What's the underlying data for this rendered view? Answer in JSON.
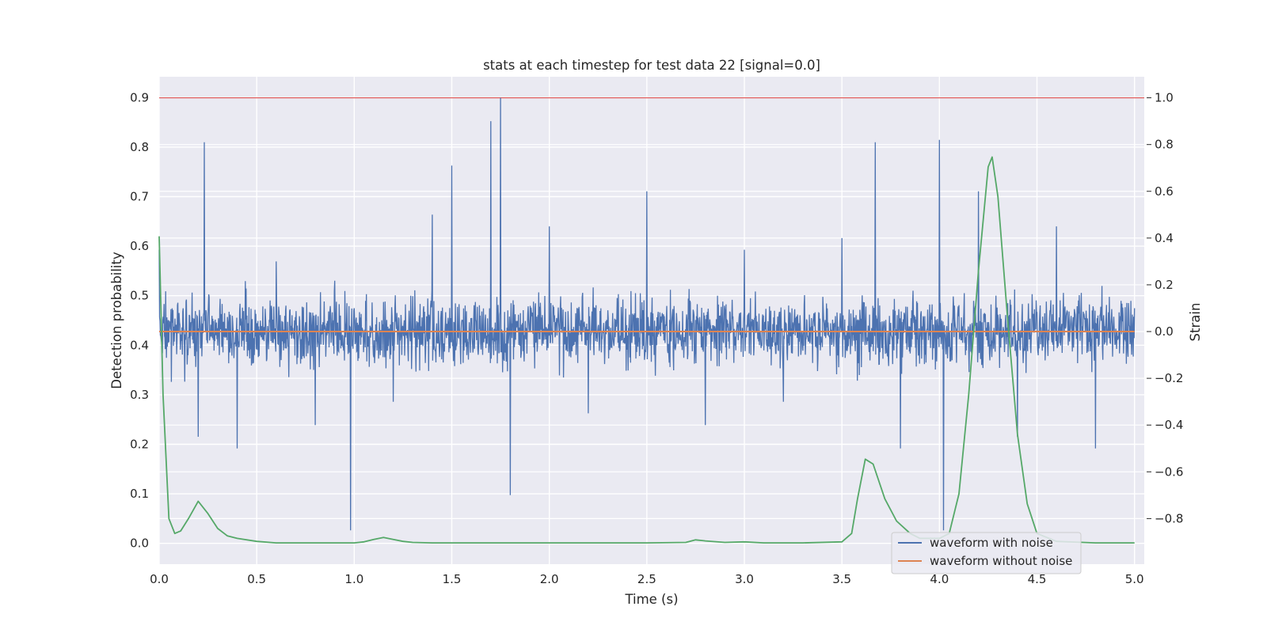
{
  "chart_data": {
    "type": "line",
    "title": "stats at each timestep for test data 22 [signal=0.0]",
    "xlabel": "Time (s)",
    "ylabel": "Detection probability",
    "y2label": "Strain",
    "xlim": [
      0.0,
      5.05
    ],
    "ylim": [
      -0.042,
      0.942
    ],
    "y2lim": [
      -0.995,
      1.09
    ],
    "xticks": [
      "0.0",
      "0.5",
      "1.0",
      "1.5",
      "2.0",
      "2.5",
      "3.0",
      "3.5",
      "4.0",
      "4.5",
      "5.0"
    ],
    "xtick_values": [
      0.0,
      0.5,
      1.0,
      1.5,
      2.0,
      2.5,
      3.0,
      3.5,
      4.0,
      4.5,
      5.0
    ],
    "yticks": [
      "0.0",
      "0.1",
      "0.2",
      "0.3",
      "0.4",
      "0.5",
      "0.6",
      "0.7",
      "0.8",
      "0.9"
    ],
    "ytick_values": [
      0.0,
      0.1,
      0.2,
      0.3,
      0.4,
      0.5,
      0.6,
      0.7,
      0.8,
      0.9
    ],
    "y2ticks": [
      "−0.8",
      "−0.6",
      "−0.4",
      "−0.2",
      "0.0",
      "0.2",
      "0.4",
      "0.6",
      "0.8",
      "1.0"
    ],
    "y2tick_values": [
      -0.8,
      -0.6,
      -0.4,
      -0.2,
      0.0,
      0.2,
      0.4,
      0.6,
      0.8,
      1.0
    ],
    "grid": true,
    "legend_position": "lower-right",
    "threshold": {
      "axis": "right",
      "value": 1.0,
      "color": "#e05c5c"
    },
    "series": [
      {
        "name": "waveform with noise",
        "axis": "right",
        "color": "#4c72b0",
        "note_pattern": "dense noise between about -0.55 and 0.60",
        "x": [
          0.0,
          0.2,
          0.23,
          0.4,
          0.6,
          0.8,
          0.98,
          1.0,
          1.2,
          1.4,
          1.5,
          1.7,
          1.75,
          1.8,
          2.0,
          2.2,
          2.5,
          2.8,
          3.0,
          3.2,
          3.5,
          3.67,
          3.8,
          4.0,
          4.02,
          4.2,
          4.4,
          4.6,
          4.8,
          5.0
        ],
        "y": [
          0.35,
          -0.45,
          0.81,
          -0.5,
          0.3,
          -0.4,
          -0.85,
          0.1,
          -0.3,
          0.5,
          0.71,
          0.9,
          1.0,
          -0.7,
          0.45,
          -0.35,
          0.6,
          -0.4,
          0.35,
          -0.3,
          0.4,
          0.81,
          -0.5,
          0.82,
          -0.85,
          0.6,
          -0.45,
          0.45,
          -0.5,
          0.1
        ]
      },
      {
        "name": "waveform without noise",
        "axis": "right",
        "color": "#dd8452",
        "x": [
          0.0,
          5.0
        ],
        "y": [
          0.0,
          0.0
        ]
      },
      {
        "name": "",
        "axis": "left",
        "color": "#55a868",
        "x": [
          0.0,
          0.02,
          0.05,
          0.08,
          0.11,
          0.15,
          0.2,
          0.25,
          0.3,
          0.35,
          0.4,
          0.5,
          0.6,
          0.8,
          1.0,
          1.05,
          1.1,
          1.15,
          1.2,
          1.25,
          1.3,
          1.4,
          1.7,
          2.0,
          2.5,
          2.7,
          2.75,
          2.8,
          2.9,
          3.0,
          3.1,
          3.3,
          3.5,
          3.55,
          3.58,
          3.62,
          3.66,
          3.72,
          3.78,
          3.85,
          3.9,
          4.0,
          4.05,
          4.1,
          4.15,
          4.2,
          4.25,
          4.27,
          4.3,
          4.35,
          4.4,
          4.45,
          4.5,
          4.6,
          4.8,
          5.0
        ],
        "y": [
          0.62,
          0.3,
          0.05,
          0.02,
          0.025,
          0.05,
          0.085,
          0.06,
          0.03,
          0.015,
          0.01,
          0.004,
          0.001,
          0.001,
          0.001,
          0.003,
          0.008,
          0.012,
          0.008,
          0.004,
          0.002,
          0.001,
          0.001,
          0.001,
          0.001,
          0.002,
          0.007,
          0.005,
          0.002,
          0.003,
          0.001,
          0.001,
          0.003,
          0.02,
          0.09,
          0.17,
          0.16,
          0.09,
          0.045,
          0.02,
          0.01,
          0.01,
          0.02,
          0.1,
          0.3,
          0.55,
          0.76,
          0.78,
          0.7,
          0.45,
          0.22,
          0.08,
          0.02,
          0.004,
          0.001,
          0.001
        ]
      }
    ]
  }
}
